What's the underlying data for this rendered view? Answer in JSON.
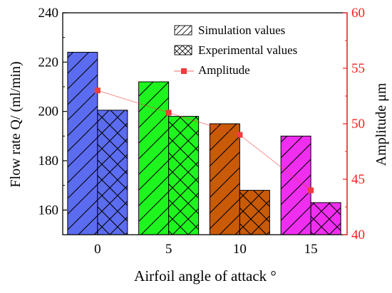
{
  "chart_data": {
    "type": "bar",
    "categories": [
      "0",
      "5",
      "10",
      "15"
    ],
    "xlabel": "Airfoil angle of attack °",
    "ylabel": "Flow rate Q/ (ml/min)",
    "y2label": "Amplitude μm",
    "ylim": [
      150,
      240
    ],
    "y2lim": [
      40,
      60
    ],
    "yticks": [
      160,
      180,
      200,
      220,
      240
    ],
    "y2ticks": [
      40,
      45,
      50,
      55,
      60
    ],
    "series": [
      {
        "name": "Simulation values",
        "kind": "bar",
        "hatch": "diagonal",
        "values": [
          224,
          212,
          195,
          190
        ],
        "colors": [
          "#5b6cf0",
          "#1ef51e",
          "#c95a08",
          "#f02ef0"
        ]
      },
      {
        "name": "Experimental values",
        "kind": "bar",
        "hatch": "crosshatch",
        "values": [
          200.5,
          198,
          168,
          163
        ],
        "colors": [
          "#5b6cf0",
          "#1ef51e",
          "#c95a08",
          "#f02ef0"
        ]
      },
      {
        "name": "Amplitude",
        "kind": "line",
        "axis": "right",
        "values": [
          53,
          51,
          49,
          44
        ],
        "color": "#f03c3c"
      }
    ],
    "legend_position": "top-right",
    "right_axis_color": "#ff2020"
  }
}
